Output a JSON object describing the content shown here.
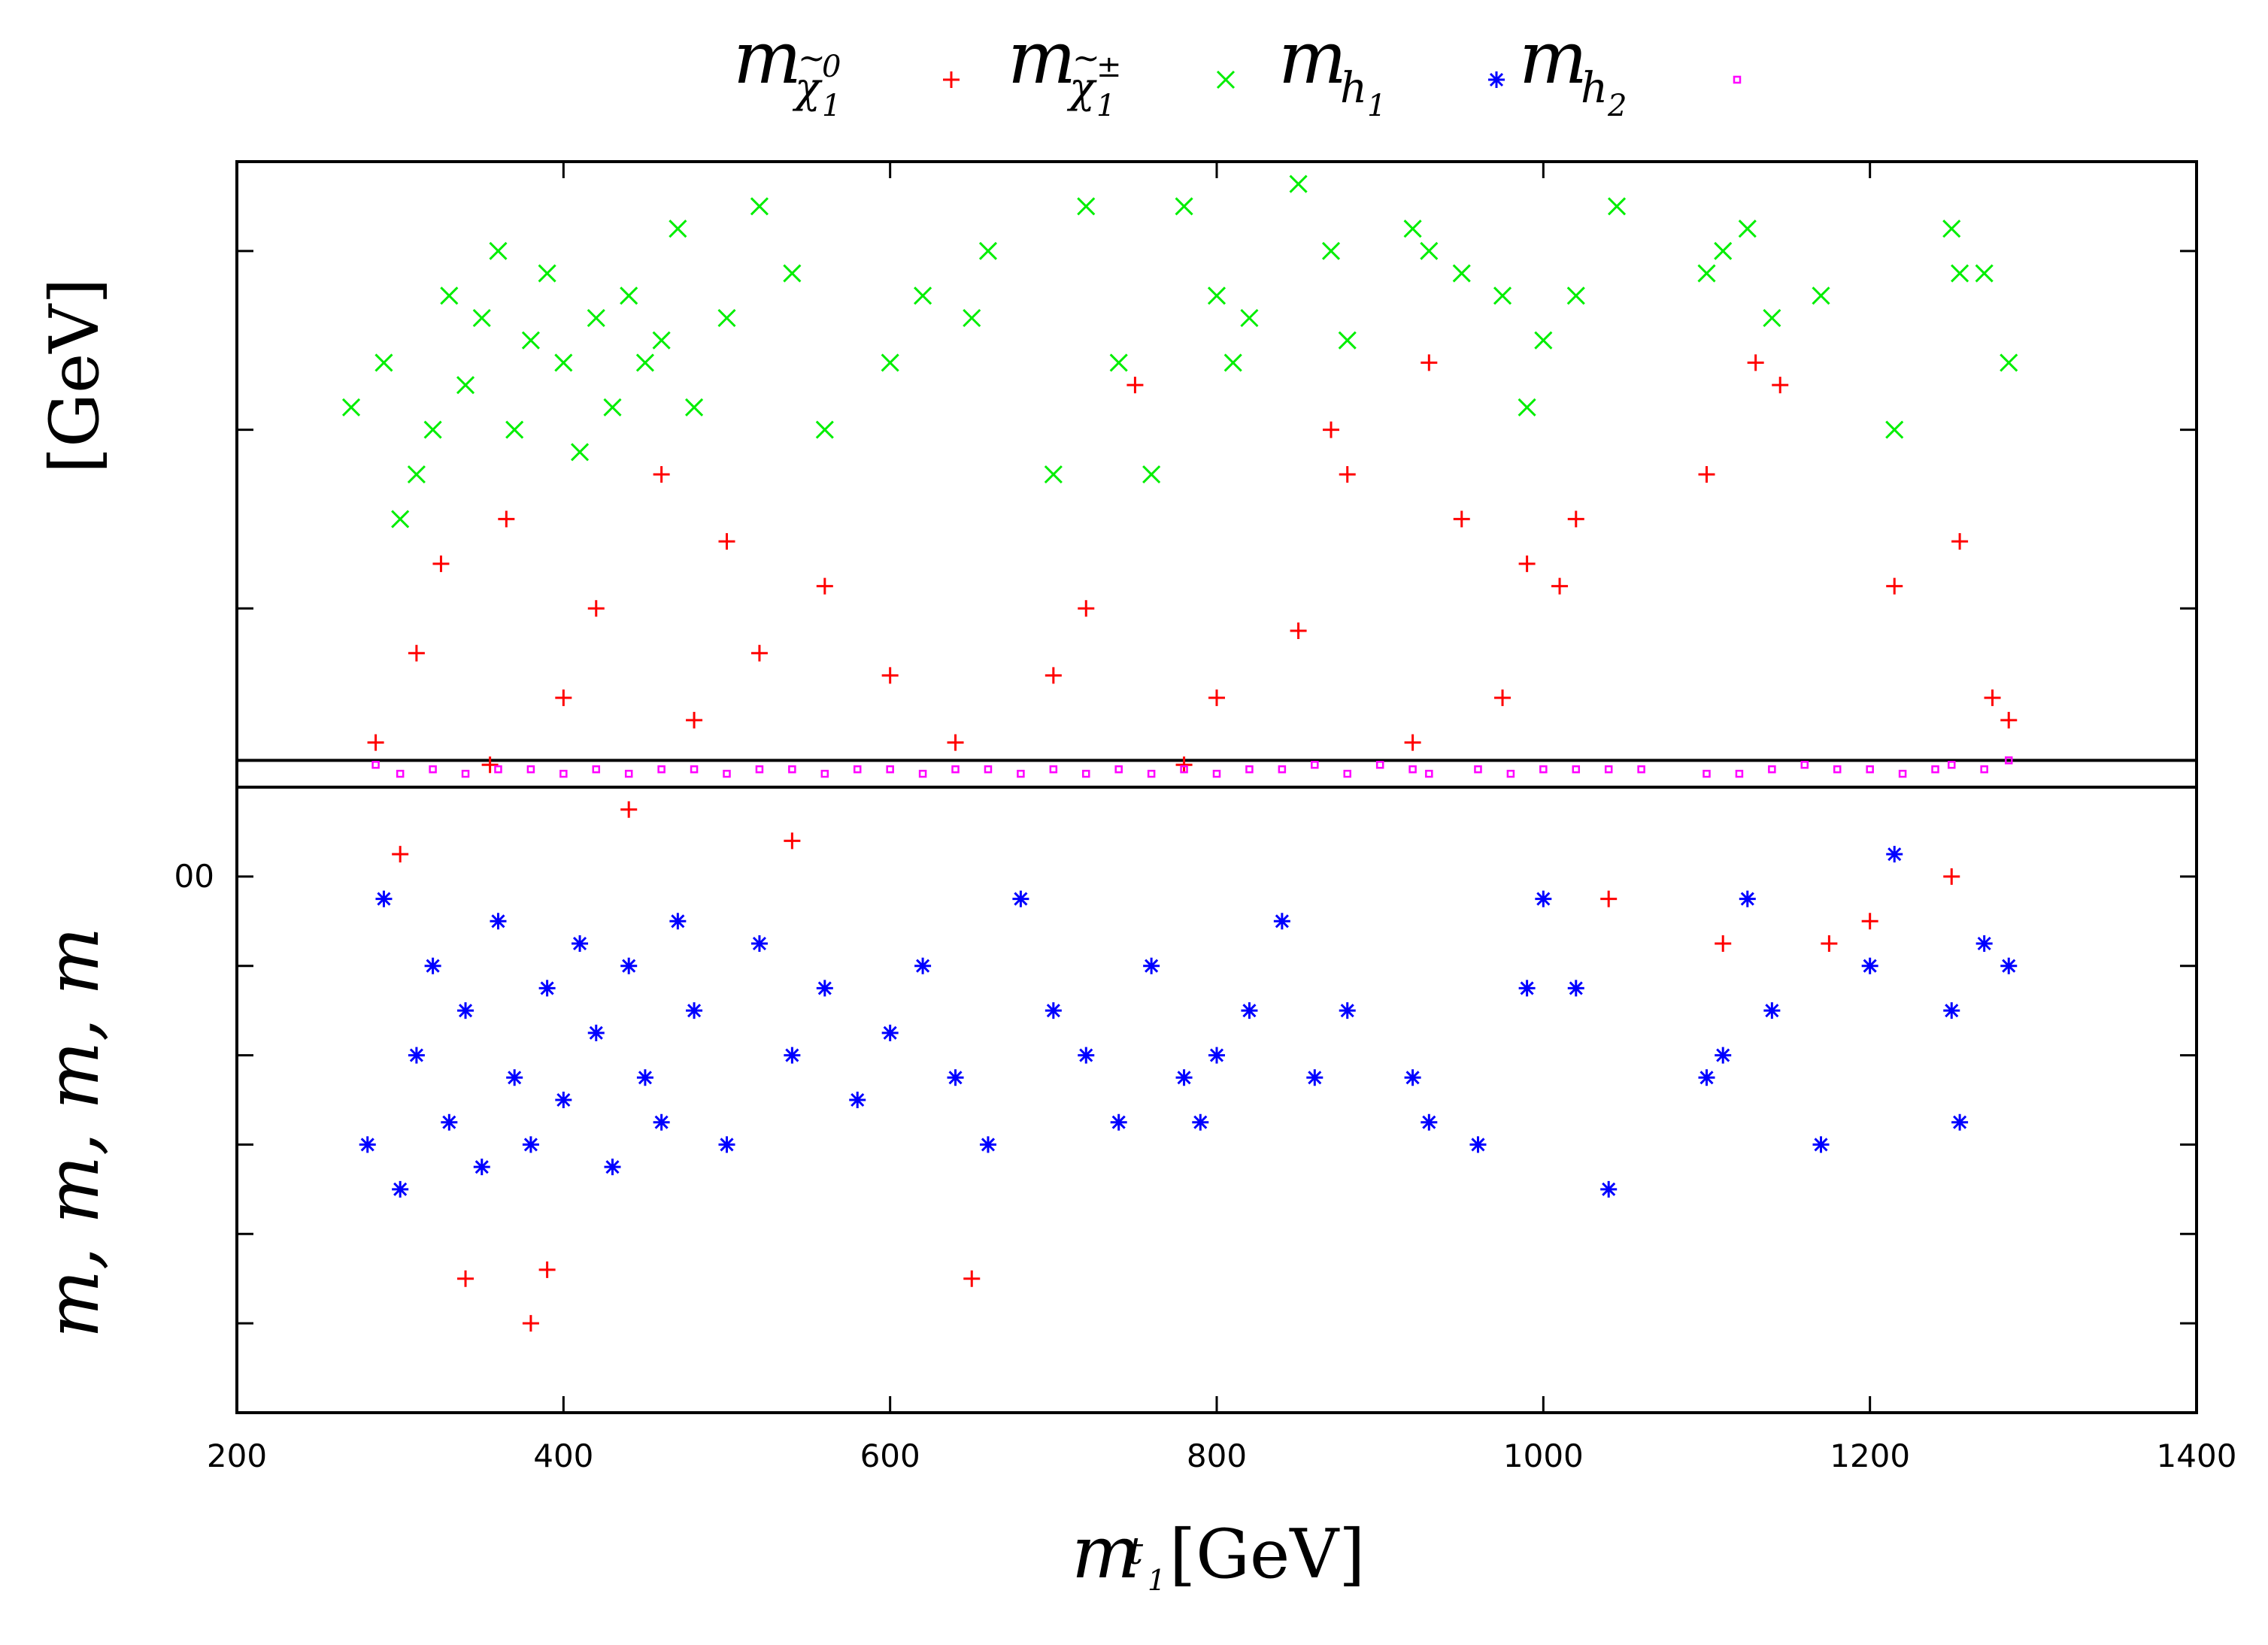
{
  "chart_data": {
    "type": "scatter",
    "title": "",
    "xlabel": {
      "symbol": "m",
      "sub": "t",
      "subsub": "1",
      "unit": "[GeV]"
    },
    "ylabel": {
      "text": "m, m, m, m",
      "unit": "[GeV]"
    },
    "xlim": [
      200,
      1400
    ],
    "ylim": [
      -20,
      260
    ],
    "x_ticks": [
      "200",
      "400",
      "600",
      "800",
      "1000",
      "1200",
      "1400"
    ],
    "x_tick_values": [
      200,
      400,
      600,
      800,
      1000,
      1200,
      1400
    ],
    "y_tick_label": "00",
    "y_tick_label_value": 100,
    "y_minor_ticks": [
      0,
      20,
      40,
      60,
      80,
      100,
      120,
      160,
      200,
      240
    ],
    "horizontal_lines": [
      120,
      126
    ],
    "grid": false,
    "legend_position": "top",
    "series": [
      {
        "name": "m_chi10",
        "legend": {
          "base": "m",
          "sub": "χ",
          "sub_tilde": true,
          "sub_sup": "0",
          "sub_sub": "1"
        },
        "color": "#ff0000",
        "marker": "plus",
        "points": [
          [
            285,
            130
          ],
          [
            300,
            105
          ],
          [
            310,
            150
          ],
          [
            325,
            170
          ],
          [
            340,
            10
          ],
          [
            355,
            125
          ],
          [
            365,
            180
          ],
          [
            380,
            0
          ],
          [
            390,
            12
          ],
          [
            400,
            140
          ],
          [
            420,
            160
          ],
          [
            440,
            115
          ],
          [
            460,
            190
          ],
          [
            480,
            135
          ],
          [
            500,
            175
          ],
          [
            520,
            150
          ],
          [
            540,
            108
          ],
          [
            560,
            165
          ],
          [
            600,
            145
          ],
          [
            640,
            130
          ],
          [
            650,
            10
          ],
          [
            700,
            145
          ],
          [
            720,
            160
          ],
          [
            750,
            210
          ],
          [
            780,
            125
          ],
          [
            800,
            140
          ],
          [
            850,
            155
          ],
          [
            870,
            200
          ],
          [
            880,
            190
          ],
          [
            920,
            130
          ],
          [
            930,
            215
          ],
          [
            950,
            180
          ],
          [
            975,
            140
          ],
          [
            990,
            170
          ],
          [
            1010,
            165
          ],
          [
            1020,
            180
          ],
          [
            1040,
            95
          ],
          [
            1100,
            190
          ],
          [
            1110,
            85
          ],
          [
            1130,
            215
          ],
          [
            1145,
            210
          ],
          [
            1175,
            85
          ],
          [
            1200,
            90
          ],
          [
            1215,
            165
          ],
          [
            1250,
            100
          ],
          [
            1255,
            175
          ],
          [
            1275,
            140
          ],
          [
            1285,
            135
          ]
        ]
      },
      {
        "name": "m_chi1pm",
        "legend": {
          "base": "m",
          "sub": "χ",
          "sub_tilde": true,
          "sub_sup": "±",
          "sub_sub": "1"
        },
        "color": "#00ee00",
        "marker": "cross",
        "points": [
          [
            270,
            205
          ],
          [
            290,
            215
          ],
          [
            300,
            180
          ],
          [
            310,
            190
          ],
          [
            320,
            200
          ],
          [
            330,
            230
          ],
          [
            340,
            210
          ],
          [
            350,
            225
          ],
          [
            360,
            240
          ],
          [
            370,
            200
          ],
          [
            380,
            220
          ],
          [
            390,
            235
          ],
          [
            400,
            215
          ],
          [
            410,
            195
          ],
          [
            420,
            225
          ],
          [
            430,
            205
          ],
          [
            440,
            230
          ],
          [
            450,
            215
          ],
          [
            460,
            220
          ],
          [
            470,
            245
          ],
          [
            480,
            205
          ],
          [
            500,
            225
          ],
          [
            520,
            250
          ],
          [
            540,
            235
          ],
          [
            560,
            200
          ],
          [
            600,
            215
          ],
          [
            620,
            230
          ],
          [
            650,
            225
          ],
          [
            660,
            240
          ],
          [
            700,
            190
          ],
          [
            720,
            250
          ],
          [
            740,
            215
          ],
          [
            760,
            190
          ],
          [
            780,
            250
          ],
          [
            800,
            230
          ],
          [
            810,
            215
          ],
          [
            820,
            225
          ],
          [
            850,
            255
          ],
          [
            870,
            240
          ],
          [
            880,
            220
          ],
          [
            920,
            245
          ],
          [
            930,
            240
          ],
          [
            950,
            235
          ],
          [
            975,
            230
          ],
          [
            990,
            205
          ],
          [
            1000,
            220
          ],
          [
            1020,
            230
          ],
          [
            1045,
            250
          ],
          [
            1100,
            235
          ],
          [
            1110,
            240
          ],
          [
            1125,
            245
          ],
          [
            1140,
            225
          ],
          [
            1170,
            230
          ],
          [
            1215,
            200
          ],
          [
            1250,
            245
          ],
          [
            1255,
            235
          ],
          [
            1270,
            235
          ],
          [
            1285,
            215
          ]
        ]
      },
      {
        "name": "m_h1",
        "legend": {
          "base": "m",
          "sub": "h",
          "sub_sub": "1"
        },
        "color": "#0000ff",
        "marker": "star",
        "points": [
          [
            280,
            40
          ],
          [
            290,
            95
          ],
          [
            300,
            30
          ],
          [
            310,
            60
          ],
          [
            320,
            80
          ],
          [
            330,
            45
          ],
          [
            340,
            70
          ],
          [
            350,
            35
          ],
          [
            360,
            90
          ],
          [
            370,
            55
          ],
          [
            380,
            40
          ],
          [
            390,
            75
          ],
          [
            400,
            50
          ],
          [
            410,
            85
          ],
          [
            420,
            65
          ],
          [
            430,
            35
          ],
          [
            440,
            80
          ],
          [
            450,
            55
          ],
          [
            460,
            45
          ],
          [
            470,
            90
          ],
          [
            480,
            70
          ],
          [
            500,
            40
          ],
          [
            520,
            85
          ],
          [
            540,
            60
          ],
          [
            560,
            75
          ],
          [
            580,
            50
          ],
          [
            600,
            65
          ],
          [
            620,
            80
          ],
          [
            640,
            55
          ],
          [
            660,
            40
          ],
          [
            680,
            95
          ],
          [
            700,
            70
          ],
          [
            720,
            60
          ],
          [
            740,
            45
          ],
          [
            760,
            80
          ],
          [
            780,
            55
          ],
          [
            790,
            45
          ],
          [
            800,
            60
          ],
          [
            820,
            70
          ],
          [
            840,
            90
          ],
          [
            860,
            55
          ],
          [
            880,
            70
          ],
          [
            920,
            55
          ],
          [
            930,
            45
          ],
          [
            960,
            40
          ],
          [
            990,
            75
          ],
          [
            1000,
            95
          ],
          [
            1020,
            75
          ],
          [
            1040,
            30
          ],
          [
            1100,
            55
          ],
          [
            1110,
            60
          ],
          [
            1125,
            95
          ],
          [
            1140,
            70
          ],
          [
            1170,
            40
          ],
          [
            1200,
            80
          ],
          [
            1215,
            105
          ],
          [
            1250,
            70
          ],
          [
            1255,
            45
          ],
          [
            1270,
            85
          ],
          [
            1285,
            80
          ]
        ]
      },
      {
        "name": "m_h2",
        "legend": {
          "base": "m",
          "sub": "h",
          "sub_sub": "2"
        },
        "color": "#ff00ff",
        "marker": "square",
        "points": [
          [
            285,
            125
          ],
          [
            300,
            123
          ],
          [
            320,
            124
          ],
          [
            340,
            123
          ],
          [
            360,
            124
          ],
          [
            380,
            124
          ],
          [
            400,
            123
          ],
          [
            420,
            124
          ],
          [
            440,
            123
          ],
          [
            460,
            124
          ],
          [
            480,
            124
          ],
          [
            500,
            123
          ],
          [
            520,
            124
          ],
          [
            540,
            124
          ],
          [
            560,
            123
          ],
          [
            580,
            124
          ],
          [
            600,
            124
          ],
          [
            620,
            123
          ],
          [
            640,
            124
          ],
          [
            660,
            124
          ],
          [
            680,
            123
          ],
          [
            700,
            124
          ],
          [
            720,
            123
          ],
          [
            740,
            124
          ],
          [
            760,
            123
          ],
          [
            780,
            124
          ],
          [
            800,
            123
          ],
          [
            820,
            124
          ],
          [
            840,
            124
          ],
          [
            860,
            125
          ],
          [
            880,
            123
          ],
          [
            900,
            125
          ],
          [
            920,
            124
          ],
          [
            930,
            123
          ],
          [
            960,
            124
          ],
          [
            980,
            123
          ],
          [
            1000,
            124
          ],
          [
            1020,
            124
          ],
          [
            1040,
            124
          ],
          [
            1060,
            124
          ],
          [
            1100,
            123
          ],
          [
            1120,
            123
          ],
          [
            1140,
            124
          ],
          [
            1160,
            125
          ],
          [
            1180,
            124
          ],
          [
            1200,
            124
          ],
          [
            1220,
            123
          ],
          [
            1240,
            124
          ],
          [
            1250,
            125
          ],
          [
            1270,
            124
          ],
          [
            1285,
            126
          ]
        ]
      }
    ]
  }
}
